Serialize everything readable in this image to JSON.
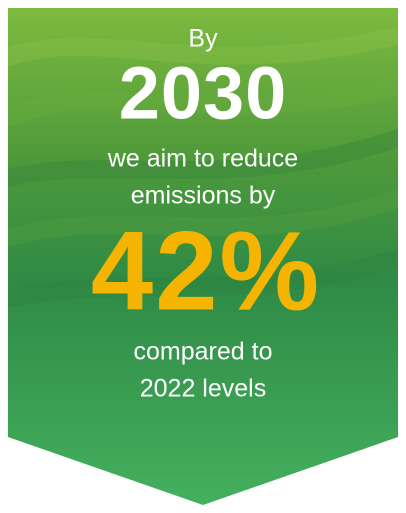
{
  "banner": {
    "intro": "By",
    "year": "2030",
    "text_lines": [
      "we aim to reduce",
      "emissions by"
    ],
    "highlight": "42%",
    "closing_lines": [
      "compared to",
      "2022 levels"
    ]
  }
}
